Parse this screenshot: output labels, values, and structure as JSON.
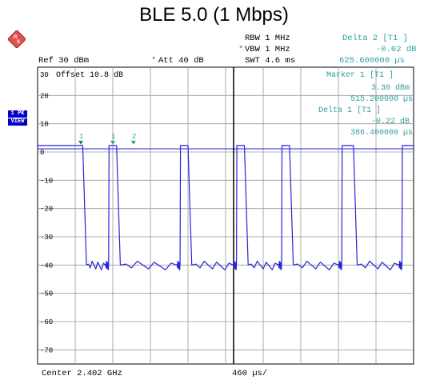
{
  "title": "BLE 5.0 (1 Mbps)",
  "header": {
    "rbw": "RBW 1 MHz",
    "vbw": "VBW 1 MHz",
    "swt": "SWT 4.6 ms",
    "ref": "Ref  30 dBm",
    "att": "Att  40 dB",
    "delta2_label": "Delta 2 [T1 ]",
    "delta2_db": "-0.02 dB",
    "delta2_time": "625.600000 µs",
    "star": "*"
  },
  "screen": {
    "offset": "Offset  10.8 dB",
    "marker1_label": "Marker 1 [T1 ]",
    "marker1_dbm": "3.30 dBm",
    "marker1_time": "515.200000 µs",
    "delta1_label": "Delta 1 [T1 ]",
    "delta1_db": "-0.22 dB",
    "delta1_time": "386.400000 µs",
    "y_ticks": [
      "30",
      "20",
      "10",
      "0",
      "-10",
      "-20",
      "-30",
      "-40",
      "-50",
      "-60",
      "-70"
    ],
    "marker_labels": [
      "1",
      "1",
      "2"
    ]
  },
  "side_tags": {
    "pk": "1 PK",
    "view": "VIEW"
  },
  "footer": {
    "center": "Center 2.402 GHz",
    "span": "460 µs/"
  },
  "chart_data": {
    "type": "line",
    "title": "BLE 5.0 (1 Mbps)",
    "xlabel": "460 µs/",
    "ylabel": "",
    "ylim": [
      -75,
      30
    ],
    "x_divisions": 10,
    "series": [
      {
        "color": "#2626d9",
        "x": [
          0,
          0.12,
          0.13,
          0.18,
          0.19,
          0.21,
          0.22,
          0.37,
          0.38,
          0.4,
          0.41,
          0.52,
          0.53,
          0.55,
          0.56,
          0.64,
          0.65,
          0.67,
          0.68,
          0.8,
          0.81,
          0.84,
          0.85,
          0.96,
          0.97,
          0.99,
          1
        ],
        "y": [
          2.3,
          2.3,
          -40,
          -40,
          2.3,
          2.3,
          -40,
          -40,
          2.3,
          2.3,
          -40,
          -40,
          2.3,
          2.3,
          -40,
          -40,
          2.3,
          2.3,
          -40,
          -40,
          2.3,
          2.3,
          -40,
          -40,
          2.3,
          2.3,
          2.3
        ]
      }
    ]
  }
}
